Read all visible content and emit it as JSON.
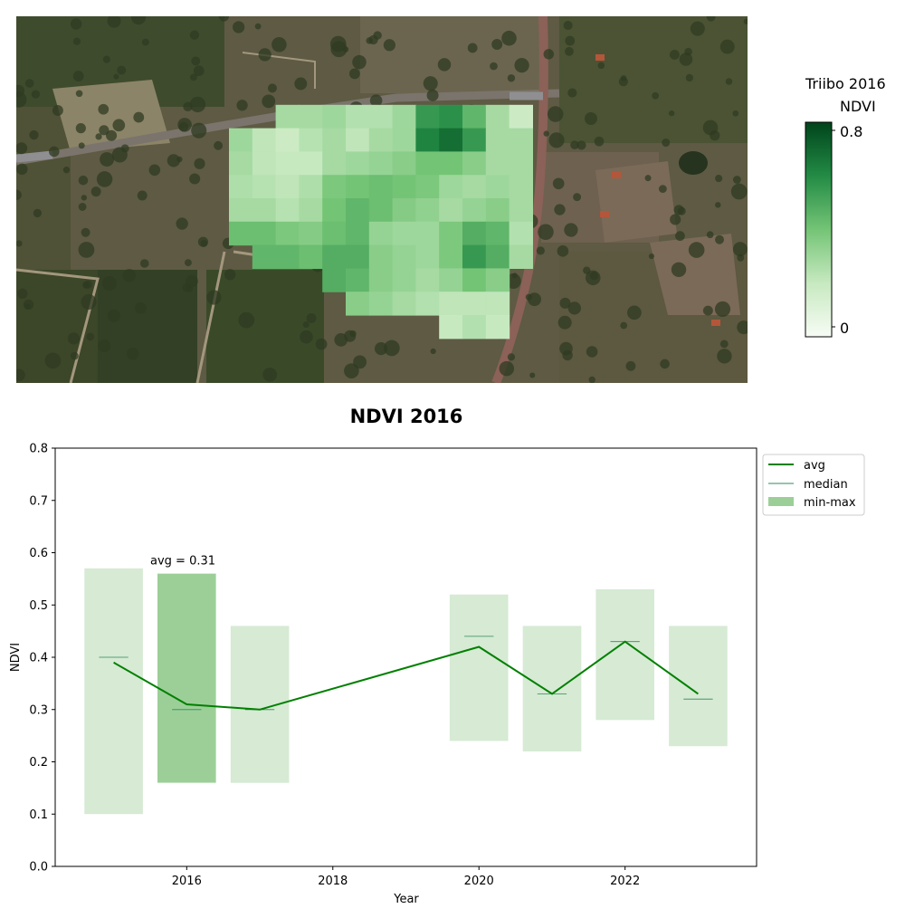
{
  "colors": {
    "avg_line": "#008000",
    "median_line": "#2e8b57",
    "bar_light": "#d6ead4",
    "bar_highlight": "#9ccf98",
    "legend_minmax": "#9ccf98"
  },
  "map": {
    "satellite_background": "satellite-imagery",
    "ndvi_grid_rows": [
      [
        null,
        null,
        null,
        null,
        null,
        null,
        null,
        null,
        null,
        null,
        null,
        null,
        null
      ],
      [
        null,
        null,
        0.28,
        0.28,
        0.3,
        0.25,
        0.25,
        0.3,
        0.55,
        0.58,
        0.45,
        0.28,
        0.18
      ],
      [
        0.3,
        0.22,
        0.18,
        0.24,
        0.28,
        0.22,
        0.28,
        0.3,
        0.62,
        0.68,
        0.55,
        0.28,
        0.28
      ],
      [
        0.28,
        0.22,
        0.2,
        0.2,
        0.28,
        0.3,
        0.32,
        0.35,
        0.4,
        0.4,
        0.35,
        0.28,
        0.28
      ],
      [
        0.26,
        0.24,
        0.22,
        0.26,
        0.38,
        0.4,
        0.42,
        0.4,
        0.38,
        0.3,
        0.28,
        0.3,
        0.28
      ],
      [
        0.28,
        0.28,
        0.24,
        0.28,
        0.4,
        0.45,
        0.42,
        0.36,
        0.33,
        0.28,
        0.32,
        0.35,
        0.28
      ],
      [
        0.42,
        0.42,
        0.38,
        0.36,
        0.42,
        0.45,
        0.32,
        0.3,
        0.3,
        0.38,
        0.48,
        0.45,
        0.25
      ],
      [
        null,
        0.45,
        0.45,
        0.42,
        0.48,
        0.48,
        0.35,
        0.32,
        0.3,
        0.38,
        0.55,
        0.48,
        0.28
      ],
      [
        null,
        null,
        null,
        null,
        0.48,
        0.45,
        0.35,
        0.32,
        0.28,
        0.32,
        0.4,
        0.35,
        null
      ],
      [
        null,
        null,
        null,
        null,
        null,
        0.35,
        0.32,
        0.28,
        0.25,
        0.22,
        0.22,
        0.22,
        null
      ],
      [
        null,
        null,
        null,
        null,
        null,
        null,
        null,
        null,
        null,
        0.2,
        0.25,
        0.2,
        null
      ]
    ]
  },
  "colorbar": {
    "title": "Triibo 2016",
    "label": "NDVI",
    "max_label": "0.8",
    "min_label": "0",
    "range": [
      0,
      0.8
    ],
    "colormap": "Greens"
  },
  "chart_data": {
    "type": "bar",
    "title": "NDVI 2016",
    "xlabel": "Year",
    "ylabel": "NDVI",
    "xlim": [
      2014.2,
      2023.8
    ],
    "ylim": [
      0.0,
      0.8
    ],
    "xticks": [
      "2016",
      "2018",
      "2020",
      "2022"
    ],
    "yticks": [
      "0.0",
      "0.1",
      "0.2",
      "0.3",
      "0.4",
      "0.5",
      "0.6",
      "0.7",
      "0.8"
    ],
    "years": [
      2015,
      2016,
      2017,
      2020,
      2021,
      2022,
      2023
    ],
    "series": [
      {
        "name": "avg",
        "kind": "line",
        "values": [
          0.39,
          0.31,
          0.3,
          0.42,
          0.33,
          0.43,
          0.33
        ]
      },
      {
        "name": "median",
        "kind": "tick",
        "values": [
          0.4,
          0.3,
          0.3,
          0.44,
          0.33,
          0.43,
          0.32
        ]
      },
      {
        "name": "min-max",
        "kind": "range-bar",
        "min": [
          0.1,
          0.16,
          0.16,
          0.24,
          0.22,
          0.28,
          0.23
        ],
        "max": [
          0.57,
          0.56,
          0.46,
          0.52,
          0.46,
          0.53,
          0.46
        ]
      }
    ],
    "highlight_year": 2016,
    "annotation": "avg = 0.31",
    "legend": {
      "placement": "outside-top-right",
      "entries": [
        "avg",
        "median",
        "min-max"
      ]
    }
  }
}
